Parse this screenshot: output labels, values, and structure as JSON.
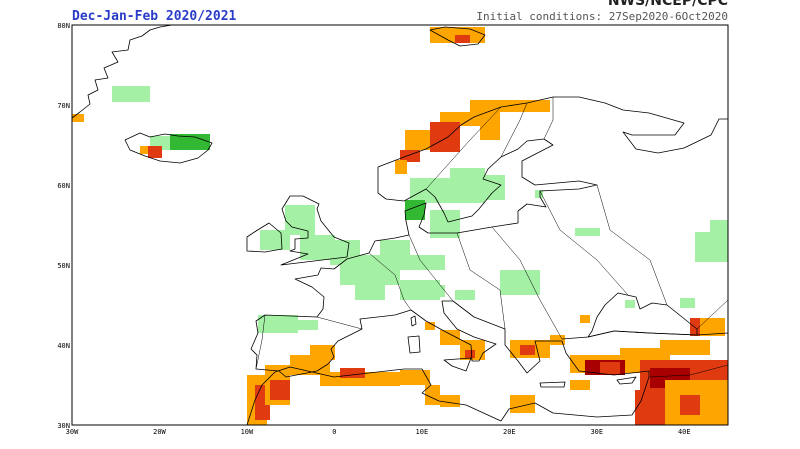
{
  "header": {
    "agency": "NWS/NCEP/CPC",
    "title": "Dec-Jan-Feb 2020/2021",
    "subtitle": "Initial conditions: 27Sep2020-6Oct2020"
  },
  "map": {
    "lat_labels": [
      "80N",
      "70N",
      "60N",
      "50N",
      "40N",
      "30N"
    ],
    "lon_labels": [
      "30W",
      "20W",
      "10W",
      "0",
      "10E",
      "20E",
      "30E",
      "40E"
    ]
  }
}
